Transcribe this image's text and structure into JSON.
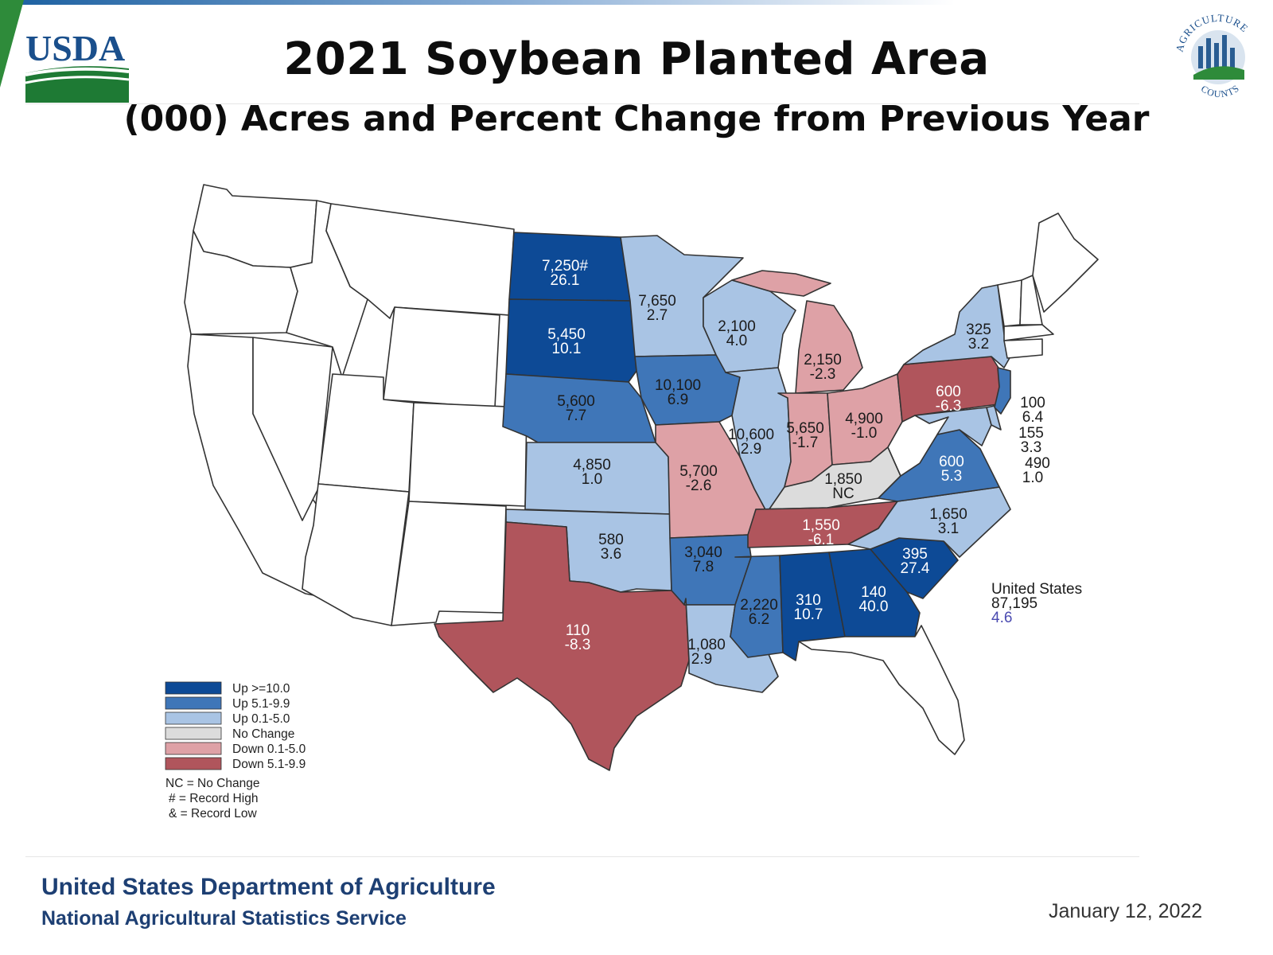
{
  "header": {
    "title": "2021 Soybean Planted Area",
    "subtitle": "(000) Acres and Percent Change from Previous Year",
    "left_logo_text": "USDA",
    "right_logo_text_top": "AGRICULTURE",
    "right_logo_text_bottom": "COUNTS"
  },
  "colors": {
    "up_ge_10": "#0d4a96",
    "up_5_1_9_9": "#3f76b8",
    "up_0_1_5_0": "#a9c4e4",
    "no_change": "#dcdcdc",
    "down_0_1_5_0": "#dea1a6",
    "down_5_1_9_9": "#b0555c",
    "no_data": "#ffffff",
    "footer_text": "#1d3f73"
  },
  "states": [
    {
      "name": "North Dakota",
      "acres": "7,250#",
      "change": "26.1",
      "category": "up_ge_10"
    },
    {
      "name": "South Dakota",
      "acres": "5,450",
      "change": "10.1",
      "category": "up_ge_10"
    },
    {
      "name": "Minnesota",
      "acres": "7,650",
      "change": "2.7",
      "category": "up_0_1_5_0"
    },
    {
      "name": "Wisconsin",
      "acres": "2,100",
      "change": "4.0",
      "category": "up_0_1_5_0"
    },
    {
      "name": "Michigan",
      "acres": "2,150",
      "change": "-2.3",
      "category": "down_0_1_5_0"
    },
    {
      "name": "Nebraska",
      "acres": "5,600",
      "change": "7.7",
      "category": "up_5_1_9_9"
    },
    {
      "name": "Iowa",
      "acres": "10,100",
      "change": "6.9",
      "category": "up_5_1_9_9"
    },
    {
      "name": "Illinois",
      "acres": "10,600",
      "change": "2.9",
      "category": "up_0_1_5_0"
    },
    {
      "name": "Indiana",
      "acres": "5,650",
      "change": "-1.7",
      "category": "down_0_1_5_0"
    },
    {
      "name": "Ohio",
      "acres": "4,900",
      "change": "-1.0",
      "category": "down_0_1_5_0"
    },
    {
      "name": "Pennsylvania",
      "acres": "600",
      "change": "-6.3",
      "category": "down_5_1_9_9"
    },
    {
      "name": "New York",
      "acres": "325",
      "change": "3.2",
      "category": "up_0_1_5_0"
    },
    {
      "name": "Kansas",
      "acres": "4,850",
      "change": "1.0",
      "category": "up_0_1_5_0"
    },
    {
      "name": "Missouri",
      "acres": "5,700",
      "change": "-2.6",
      "category": "down_0_1_5_0"
    },
    {
      "name": "Kentucky",
      "acres": "1,850",
      "change": "NC",
      "category": "no_change"
    },
    {
      "name": "Virginia",
      "acres": "600",
      "change": "5.3",
      "category": "up_5_1_9_9"
    },
    {
      "name": "New Jersey",
      "acres": "100",
      "change": "6.4",
      "category": "up_5_1_9_9"
    },
    {
      "name": "Delaware",
      "acres": "155",
      "change": "3.3",
      "category": "up_0_1_5_0"
    },
    {
      "name": "Maryland",
      "acres": "490",
      "change": "1.0",
      "category": "up_0_1_5_0"
    },
    {
      "name": "Tennessee",
      "acres": "1,550",
      "change": "-6.1",
      "category": "down_5_1_9_9"
    },
    {
      "name": "North Carolina",
      "acres": "1,650",
      "change": "3.1",
      "category": "up_0_1_5_0"
    },
    {
      "name": "Oklahoma",
      "acres": "580",
      "change": "3.6",
      "category": "up_0_1_5_0"
    },
    {
      "name": "Arkansas",
      "acres": "3,040",
      "change": "7.8",
      "category": "up_5_1_9_9"
    },
    {
      "name": "Mississippi",
      "acres": "2,220",
      "change": "6.2",
      "category": "up_5_1_9_9"
    },
    {
      "name": "Alabama",
      "acres": "310",
      "change": "10.7",
      "category": "up_ge_10"
    },
    {
      "name": "Georgia",
      "acres": "140",
      "change": "40.0",
      "category": "up_ge_10"
    },
    {
      "name": "South Carolina",
      "acres": "395",
      "change": "27.4",
      "category": "up_ge_10"
    },
    {
      "name": "Texas",
      "acres": "110",
      "change": "-8.3",
      "category": "down_5_1_9_9"
    },
    {
      "name": "Louisiana",
      "acres": "1,080",
      "change": "2.9",
      "category": "up_0_1_5_0"
    }
  ],
  "national": {
    "label": "United States",
    "acres": "87,195",
    "change": "4.6"
  },
  "legend": {
    "items": [
      {
        "label": "Up >=10.0",
        "color": "#0d4a96"
      },
      {
        "label": "Up 5.1-9.9",
        "color": "#3f76b8"
      },
      {
        "label": "Up 0.1-5.0",
        "color": "#a9c4e4"
      },
      {
        "label": "No Change",
        "color": "#dcdcdc"
      },
      {
        "label": "Down 0.1-5.0",
        "color": "#dea1a6"
      },
      {
        "label": "Down 5.1-9.9",
        "color": "#b0555c"
      }
    ],
    "notes": [
      "NC = No Change",
      "# = Record High",
      "& = Record Low"
    ]
  },
  "footer": {
    "org": "United States Department of Agriculture",
    "service": "National Agricultural Statistics Service",
    "date": "January 12, 2022"
  }
}
